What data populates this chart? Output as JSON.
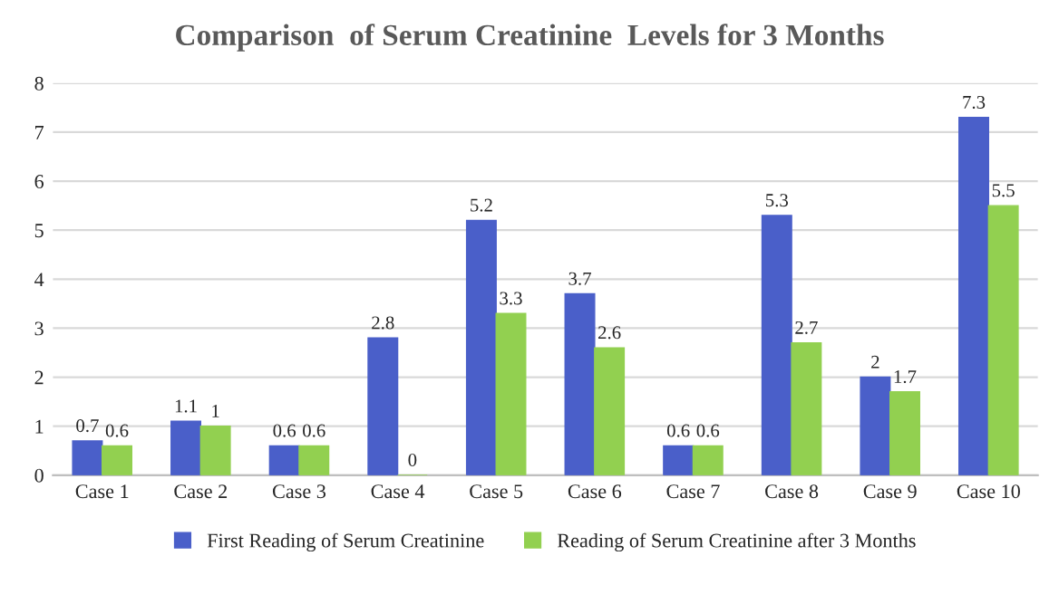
{
  "chart_data": {
    "type": "bar",
    "title": "Comparison  of Serum Creatinine  Levels for 3 Months",
    "categories": [
      "Case 1",
      "Case 2",
      "Case 3",
      "Case 4",
      "Case 5",
      "Case 6",
      "Case 7",
      "Case 8",
      "Case 9",
      "Case 10"
    ],
    "series": [
      {
        "name": "First Reading of Serum Creatinine",
        "color": "#4a5fc9",
        "values": [
          0.7,
          1.1,
          0.6,
          2.8,
          5.2,
          3.7,
          0.6,
          5.3,
          2,
          7.3
        ]
      },
      {
        "name": "Reading of Serum Creatinine after 3 Months",
        "color": "#92d050",
        "values": [
          0.6,
          1,
          0.6,
          0,
          3.3,
          2.6,
          0.6,
          2.7,
          1.7,
          5.5
        ]
      }
    ],
    "ylim": [
      0,
      8
    ],
    "yticks": [
      0,
      1,
      2,
      3,
      4,
      5,
      6,
      7,
      8
    ],
    "grid": "y",
    "legend": "bottom",
    "data_labels": true
  }
}
